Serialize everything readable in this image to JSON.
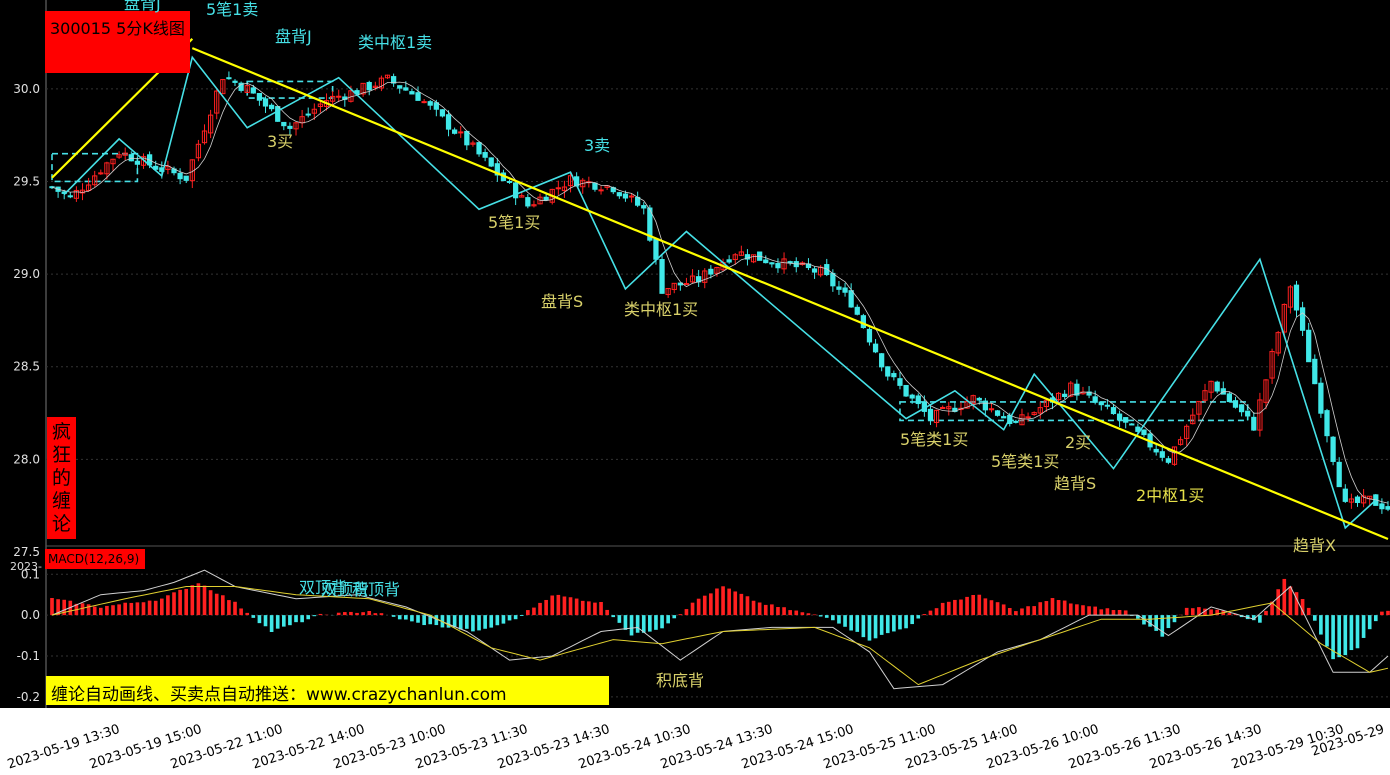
{
  "window": {
    "title": "300015 5分K线图",
    "brand": "疯狂的缠论",
    "promo": "缠论自动画线、买卖点自动推送：www.crazychanlun.com",
    "macd_label": "MACD(12,26,9)",
    "cut_label": "2023-"
  },
  "colors": {
    "up": "#ff2020",
    "down": "#40e8e8",
    "bi": "#46e0e6",
    "trend": "#ffff00",
    "dif": "#d0d0d0",
    "dea": "#e0d030"
  },
  "chart_data": [
    {
      "type": "candlestick",
      "title": "300015 5分K线图",
      "ylim": [
        27.5,
        30.35
      ],
      "yticks": [
        {
          "value": 30.0,
          "label": "30.0"
        },
        {
          "value": 29.5,
          "label": "29.5"
        },
        {
          "value": 29.0,
          "label": "29.0"
        },
        {
          "value": 28.5,
          "label": "28.5"
        },
        {
          "value": 28.0,
          "label": "28.0"
        },
        {
          "value": 27.5,
          "label": "27.5"
        }
      ],
      "grid": true,
      "x_labels": [
        "2023-05-19 13:30",
        "2023-05-19 15:00",
        "2023-05-22 11:00",
        "2023-05-22 14:00",
        "2023-05-23 10:00",
        "2023-05-23 11:30",
        "2023-05-23 14:30",
        "2023-05-24 10:30",
        "2023-05-24 13:30",
        "2023-05-24 15:00",
        "2023-05-25 11:00",
        "2023-05-25 14:00",
        "2023-05-26 10:00",
        "2023-05-26 11:30",
        "2023-05-26 14:30",
        "2023-05-29 10:30",
        "2023-05-29"
      ],
      "bars": 220,
      "price_path": [
        {
          "bar": 0,
          "price": 29.47
        },
        {
          "bar": 3,
          "price": 29.41
        },
        {
          "bar": 11,
          "price": 29.66
        },
        {
          "bar": 17,
          "price": 29.58
        },
        {
          "bar": 22,
          "price": 29.52
        },
        {
          "bar": 28,
          "price": 30.07
        },
        {
          "bar": 32,
          "price": 30.0
        },
        {
          "bar": 39,
          "price": 29.79
        },
        {
          "bar": 45,
          "price": 29.94
        },
        {
          "bar": 50,
          "price": 29.99
        },
        {
          "bar": 55,
          "price": 30.05
        },
        {
          "bar": 60,
          "price": 29.96
        },
        {
          "bar": 69,
          "price": 29.68
        },
        {
          "bar": 78,
          "price": 29.37
        },
        {
          "bar": 85,
          "price": 29.51
        },
        {
          "bar": 92,
          "price": 29.47
        },
        {
          "bar": 97,
          "price": 29.35
        },
        {
          "bar": 100,
          "price": 28.92
        },
        {
          "bar": 106,
          "price": 28.97
        },
        {
          "bar": 112,
          "price": 29.12
        },
        {
          "bar": 118,
          "price": 29.07
        },
        {
          "bar": 126,
          "price": 29.01
        },
        {
          "bar": 131,
          "price": 28.85
        },
        {
          "bar": 137,
          "price": 28.46
        },
        {
          "bar": 144,
          "price": 28.22
        },
        {
          "bar": 151,
          "price": 28.33
        },
        {
          "bar": 158,
          "price": 28.19
        },
        {
          "bar": 167,
          "price": 28.39
        },
        {
          "bar": 174,
          "price": 28.24
        },
        {
          "bar": 183,
          "price": 28.0
        },
        {
          "bar": 190,
          "price": 28.42
        },
        {
          "bar": 197,
          "price": 28.18
        },
        {
          "bar": 203,
          "price": 28.94
        },
        {
          "bar": 212,
          "price": 27.75
        },
        {
          "bar": 216,
          "price": 27.78
        },
        {
          "bar": 219,
          "price": 27.74
        }
      ],
      "bi_lines": [
        {
          "bar": 2,
          "price": 29.43
        },
        {
          "bar": 11,
          "price": 29.73
        },
        {
          "bar": 18,
          "price": 29.53
        },
        {
          "bar": 23,
          "price": 30.17
        },
        {
          "bar": 32,
          "price": 29.79
        },
        {
          "bar": 47,
          "price": 30.06
        },
        {
          "bar": 70,
          "price": 29.35
        },
        {
          "bar": 85,
          "price": 29.55
        },
        {
          "bar": 94,
          "price": 28.92
        },
        {
          "bar": 104,
          "price": 29.23
        },
        {
          "bar": 140,
          "price": 28.22
        },
        {
          "bar": 148,
          "price": 28.37
        },
        {
          "bar": 156,
          "price": 28.16
        },
        {
          "bar": 161,
          "price": 28.46
        },
        {
          "bar": 174,
          "price": 27.95
        },
        {
          "bar": 198,
          "price": 29.08
        },
        {
          "bar": 212,
          "price": 27.63
        },
        {
          "bar": 217,
          "price": 27.78
        }
      ],
      "trend_lines": [
        [
          {
            "bar": 0,
            "price": 29.52
          },
          {
            "bar": 23,
            "price": 30.27
          }
        ],
        [
          {
            "bar": 23,
            "price": 30.22
          },
          {
            "bar": 219,
            "price": 27.57
          }
        ]
      ],
      "zhongshu_boxes": [
        {
          "bar_from": 0,
          "bar_to": 14,
          "price_low": 29.5,
          "price_high": 29.65
        },
        {
          "bar_from": 32,
          "bar_to": 46,
          "price_low": 29.95,
          "price_high": 30.04
        },
        {
          "bar_from": 139,
          "bar_to": 196,
          "price_low": 28.21,
          "price_high": 28.31
        }
      ]
    },
    {
      "type": "bar",
      "title": "MACD(12,26,9)",
      "ylim": [
        -0.22,
        0.13
      ],
      "yticks": [
        {
          "value": 0.1,
          "label": "0.1"
        },
        {
          "value": 0.0,
          "label": "0.0"
        },
        {
          "value": -0.1,
          "label": "-0.1"
        },
        {
          "value": -0.2,
          "label": "-0.2"
        }
      ],
      "series": [
        {
          "name": "DIF",
          "x_values": "bar index 0-219",
          "values": [
            {
              "bar": 0,
              "v": 0.0
            },
            {
              "bar": 8,
              "v": 0.05
            },
            {
              "bar": 15,
              "v": 0.06
            },
            {
              "bar": 20,
              "v": 0.08
            },
            {
              "bar": 25,
              "v": 0.11
            },
            {
              "bar": 30,
              "v": 0.07
            },
            {
              "bar": 40,
              "v": 0.04
            },
            {
              "bar": 50,
              "v": 0.05
            },
            {
              "bar": 58,
              "v": 0.02
            },
            {
              "bar": 68,
              "v": -0.04
            },
            {
              "bar": 75,
              "v": -0.11
            },
            {
              "bar": 82,
              "v": -0.1
            },
            {
              "bar": 90,
              "v": -0.04
            },
            {
              "bar": 96,
              "v": -0.03
            },
            {
              "bar": 103,
              "v": -0.11
            },
            {
              "bar": 110,
              "v": -0.04
            },
            {
              "bar": 118,
              "v": -0.03
            },
            {
              "bar": 128,
              "v": -0.03
            },
            {
              "bar": 134,
              "v": -0.09
            },
            {
              "bar": 138,
              "v": -0.18
            },
            {
              "bar": 146,
              "v": -0.17
            },
            {
              "bar": 155,
              "v": -0.09
            },
            {
              "bar": 162,
              "v": -0.06
            },
            {
              "bar": 170,
              "v": 0.0
            },
            {
              "bar": 178,
              "v": 0.0
            },
            {
              "bar": 183,
              "v": -0.05
            },
            {
              "bar": 190,
              "v": 0.02
            },
            {
              "bar": 197,
              "v": -0.01
            },
            {
              "bar": 203,
              "v": 0.07
            },
            {
              "bar": 210,
              "v": -0.14
            },
            {
              "bar": 216,
              "v": -0.14
            },
            {
              "bar": 219,
              "v": -0.1
            }
          ]
        },
        {
          "name": "DEA",
          "x_values": "bar index 0-219",
          "values": [
            {
              "bar": 0,
              "v": 0.0
            },
            {
              "bar": 12,
              "v": 0.04
            },
            {
              "bar": 22,
              "v": 0.07
            },
            {
              "bar": 30,
              "v": 0.07
            },
            {
              "bar": 40,
              "v": 0.05
            },
            {
              "bar": 52,
              "v": 0.04
            },
            {
              "bar": 62,
              "v": 0.0
            },
            {
              "bar": 72,
              "v": -0.08
            },
            {
              "bar": 80,
              "v": -0.11
            },
            {
              "bar": 92,
              "v": -0.06
            },
            {
              "bar": 100,
              "v": -0.07
            },
            {
              "bar": 110,
              "v": -0.04
            },
            {
              "bar": 125,
              "v": -0.03
            },
            {
              "bar": 134,
              "v": -0.08
            },
            {
              "bar": 142,
              "v": -0.17
            },
            {
              "bar": 152,
              "v": -0.11
            },
            {
              "bar": 162,
              "v": -0.06
            },
            {
              "bar": 172,
              "v": -0.01
            },
            {
              "bar": 180,
              "v": -0.01
            },
            {
              "bar": 190,
              "v": 0.0
            },
            {
              "bar": 200,
              "v": 0.03
            },
            {
              "bar": 208,
              "v": -0.07
            },
            {
              "bar": 216,
              "v": -0.14
            },
            {
              "bar": 219,
              "v": -0.13
            }
          ]
        },
        {
          "name": "MACD histogram",
          "x_values": "bar index 0-219",
          "values": [
            {
              "bar": 0,
              "v": 0.04
            },
            {
              "bar": 8,
              "v": 0.02
            },
            {
              "bar": 18,
              "v": 0.04
            },
            {
              "bar": 24,
              "v": 0.08
            },
            {
              "bar": 30,
              "v": 0.03
            },
            {
              "bar": 36,
              "v": -0.04
            },
            {
              "bar": 40,
              "v": -0.02
            },
            {
              "bar": 44,
              "v": 0.0
            },
            {
              "bar": 52,
              "v": 0.01
            },
            {
              "bar": 60,
              "v": -0.02
            },
            {
              "bar": 70,
              "v": -0.04
            },
            {
              "bar": 76,
              "v": -0.01
            },
            {
              "bar": 82,
              "v": 0.05
            },
            {
              "bar": 90,
              "v": 0.03
            },
            {
              "bar": 95,
              "v": -0.05
            },
            {
              "bar": 100,
              "v": -0.03
            },
            {
              "bar": 106,
              "v": 0.04
            },
            {
              "bar": 110,
              "v": 0.07
            },
            {
              "bar": 116,
              "v": 0.03
            },
            {
              "bar": 122,
              "v": 0.01
            },
            {
              "bar": 128,
              "v": -0.01
            },
            {
              "bar": 134,
              "v": -0.06
            },
            {
              "bar": 140,
              "v": -0.03
            },
            {
              "bar": 146,
              "v": 0.03
            },
            {
              "bar": 152,
              "v": 0.05
            },
            {
              "bar": 158,
              "v": 0.01
            },
            {
              "bar": 164,
              "v": 0.04
            },
            {
              "bar": 170,
              "v": 0.02
            },
            {
              "bar": 176,
              "v": 0.01
            },
            {
              "bar": 182,
              "v": -0.05
            },
            {
              "bar": 186,
              "v": 0.02
            },
            {
              "bar": 192,
              "v": 0.01
            },
            {
              "bar": 198,
              "v": -0.02
            },
            {
              "bar": 202,
              "v": 0.09
            },
            {
              "bar": 206,
              "v": 0.02
            },
            {
              "bar": 210,
              "v": -0.11
            },
            {
              "bar": 214,
              "v": -0.08
            },
            {
              "bar": 218,
              "v": 0.01
            }
          ]
        }
      ]
    }
  ],
  "annotations": [
    {
      "text": "5笔1卖",
      "color": "cyan"
    },
    {
      "text": "盘背J",
      "color": "cyan"
    },
    {
      "text": "盘背J",
      "color": "cyan"
    },
    {
      "text": "类中枢1卖",
      "color": "cyan"
    },
    {
      "text": "3买",
      "color": "ysmall"
    },
    {
      "text": "3卖",
      "color": "cyan"
    },
    {
      "text": "5笔1买",
      "color": "ysmall"
    },
    {
      "text": "盘背S",
      "color": "ysmall"
    },
    {
      "text": "类中枢1买",
      "color": "ysmall"
    },
    {
      "text": "5笔类1买",
      "color": "ysmall"
    },
    {
      "text": "5笔类1买",
      "color": "ysmall"
    },
    {
      "text": "2买",
      "color": "ysmall"
    },
    {
      "text": "趋背S",
      "color": "ysmall"
    },
    {
      "text": "2中枢1买",
      "color": "yellow"
    },
    {
      "text": "趋背X",
      "color": "ysmall"
    },
    {
      "text": "双顶背",
      "color": "cyan"
    },
    {
      "text": "双顶背",
      "color": "cyan"
    },
    {
      "text": "积顶背",
      "color": "cyan"
    },
    {
      "text": "积底背",
      "color": "ysmall"
    }
  ]
}
